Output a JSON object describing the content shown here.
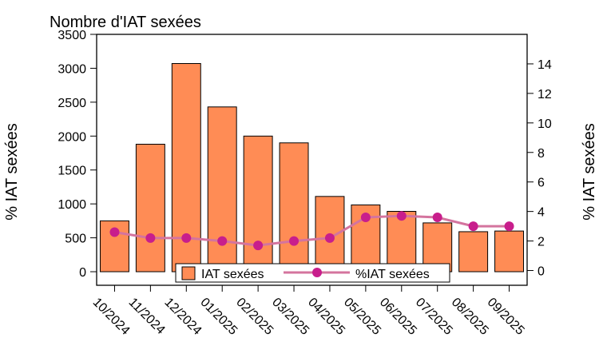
{
  "chart_data": {
    "type": "bar+line",
    "title": "Nombre d'IAT sexées",
    "ylabel_left": "% IAT sexées",
    "ylabel_right": "% IAT sexées",
    "categories": [
      "10/2024",
      "11/2024",
      "12/2024",
      "01/2025",
      "02/2025",
      "03/2025",
      "04/2025",
      "05/2025",
      "06/2025",
      "07/2025",
      "08/2025",
      "09/2025"
    ],
    "series": [
      {
        "name": "IAT sexées",
        "type": "bar",
        "axis": "left",
        "color": "#FF8C55",
        "values": [
          750,
          1880,
          3070,
          2430,
          2000,
          1900,
          1110,
          985,
          890,
          720,
          590,
          600
        ]
      },
      {
        "name": "%IAT sexées",
        "type": "line",
        "axis": "right",
        "color": "#D4749E",
        "marker_color": "#C81E8C",
        "values": [
          2.6,
          2.2,
          2.2,
          2.0,
          1.7,
          2.0,
          2.2,
          3.6,
          3.7,
          3.6,
          3.0,
          3.0
        ]
      }
    ],
    "y_left": {
      "ylim": [
        -200,
        3500
      ],
      "ticks": [
        0,
        500,
        1000,
        1500,
        2000,
        2500,
        3000,
        3500
      ]
    },
    "y_right": {
      "ylim": [
        -1,
        16
      ],
      "ticks": [
        0,
        2,
        4,
        6,
        8,
        10,
        12,
        14
      ]
    },
    "grid": false,
    "legend": {
      "placement": "bottom-center-inside"
    }
  }
}
